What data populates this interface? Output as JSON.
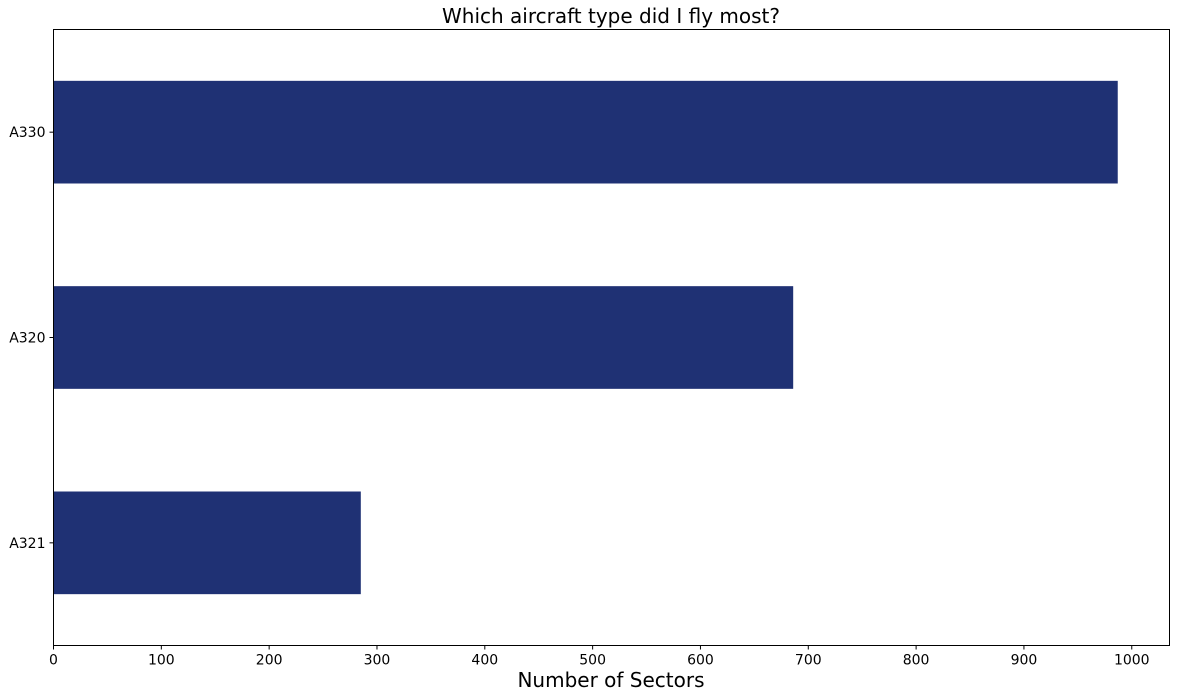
{
  "chart_data": {
    "type": "bar",
    "orientation": "horizontal",
    "title": "Which aircraft type did I fly most?",
    "xlabel": "Number of Sectors",
    "ylabel": "",
    "categories": [
      "A330",
      "A320",
      "A321"
    ],
    "values": [
      987,
      686,
      285
    ],
    "xlim": [
      0,
      1035
    ],
    "xticks": [
      0,
      100,
      200,
      300,
      400,
      500,
      600,
      700,
      800,
      900,
      1000
    ],
    "grid": false,
    "legend": "none",
    "bar_color": "#1f3174"
  }
}
